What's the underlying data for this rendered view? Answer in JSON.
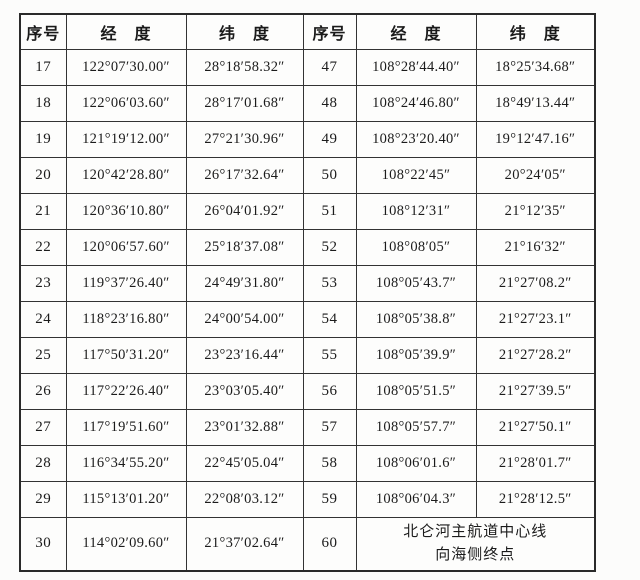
{
  "page": {
    "background_color": "#fcfcfb",
    "border_color": "#2a2a2a",
    "text_color": "#1b1b1b"
  },
  "table": {
    "headers": [
      "序号",
      "经　度",
      "纬　度",
      "序号",
      "经　度",
      "纬　度"
    ],
    "rows": [
      {
        "l_no": "17",
        "l_lon": "122°07′30.00″",
        "l_lat": "28°18′58.32″",
        "r_no": "47",
        "r_lon": "108°28′44.40″",
        "r_lat": "18°25′34.68″"
      },
      {
        "l_no": "18",
        "l_lon": "122°06′03.60″",
        "l_lat": "28°17′01.68″",
        "r_no": "48",
        "r_lon": "108°24′46.80″",
        "r_lat": "18°49′13.44″"
      },
      {
        "l_no": "19",
        "l_lon": "121°19′12.00″",
        "l_lat": "27°21′30.96″",
        "r_no": "49",
        "r_lon": "108°23′20.40″",
        "r_lat": "19°12′47.16″"
      },
      {
        "l_no": "20",
        "l_lon": "120°42′28.80″",
        "l_lat": "26°17′32.64″",
        "r_no": "50",
        "r_lon": "108°22′45″",
        "r_lat": "20°24′05″"
      },
      {
        "l_no": "21",
        "l_lon": "120°36′10.80″",
        "l_lat": "26°04′01.92″",
        "r_no": "51",
        "r_lon": "108°12′31″",
        "r_lat": "21°12′35″"
      },
      {
        "l_no": "22",
        "l_lon": "120°06′57.60″",
        "l_lat": "25°18′37.08″",
        "r_no": "52",
        "r_lon": "108°08′05″",
        "r_lat": "21°16′32″"
      },
      {
        "l_no": "23",
        "l_lon": "119°37′26.40″",
        "l_lat": "24°49′31.80″",
        "r_no": "53",
        "r_lon": "108°05′43.7″",
        "r_lat": "21°27′08.2″"
      },
      {
        "l_no": "24",
        "l_lon": "118°23′16.80″",
        "l_lat": "24°00′54.00″",
        "r_no": "54",
        "r_lon": "108°05′38.8″",
        "r_lat": "21°27′23.1″"
      },
      {
        "l_no": "25",
        "l_lon": "117°50′31.20″",
        "l_lat": "23°23′16.44″",
        "r_no": "55",
        "r_lon": "108°05′39.9″",
        "r_lat": "21°27′28.2″"
      },
      {
        "l_no": "26",
        "l_lon": "117°22′26.40″",
        "l_lat": "23°03′05.40″",
        "r_no": "56",
        "r_lon": "108°05′51.5″",
        "r_lat": "21°27′39.5″"
      },
      {
        "l_no": "27",
        "l_lon": "117°19′51.60″",
        "l_lat": "23°01′32.88″",
        "r_no": "57",
        "r_lon": "108°05′57.7″",
        "r_lat": "21°27′50.1″"
      },
      {
        "l_no": "28",
        "l_lon": "116°34′55.20″",
        "l_lat": "22°45′05.04″",
        "r_no": "58",
        "r_lon": "108°06′01.6″",
        "r_lat": "21°28′01.7″"
      },
      {
        "l_no": "29",
        "l_lon": "115°13′01.20″",
        "l_lat": "22°08′03.12″",
        "r_no": "59",
        "r_lon": "108°06′04.3″",
        "r_lat": "21°28′12.5″"
      },
      {
        "l_no": "30",
        "l_lon": "114°02′09.60″",
        "l_lat": "21°37′02.64″",
        "r_no": "60",
        "r_note": [
          "北仑河主航道中心线",
          "向海侧终点"
        ]
      }
    ]
  }
}
